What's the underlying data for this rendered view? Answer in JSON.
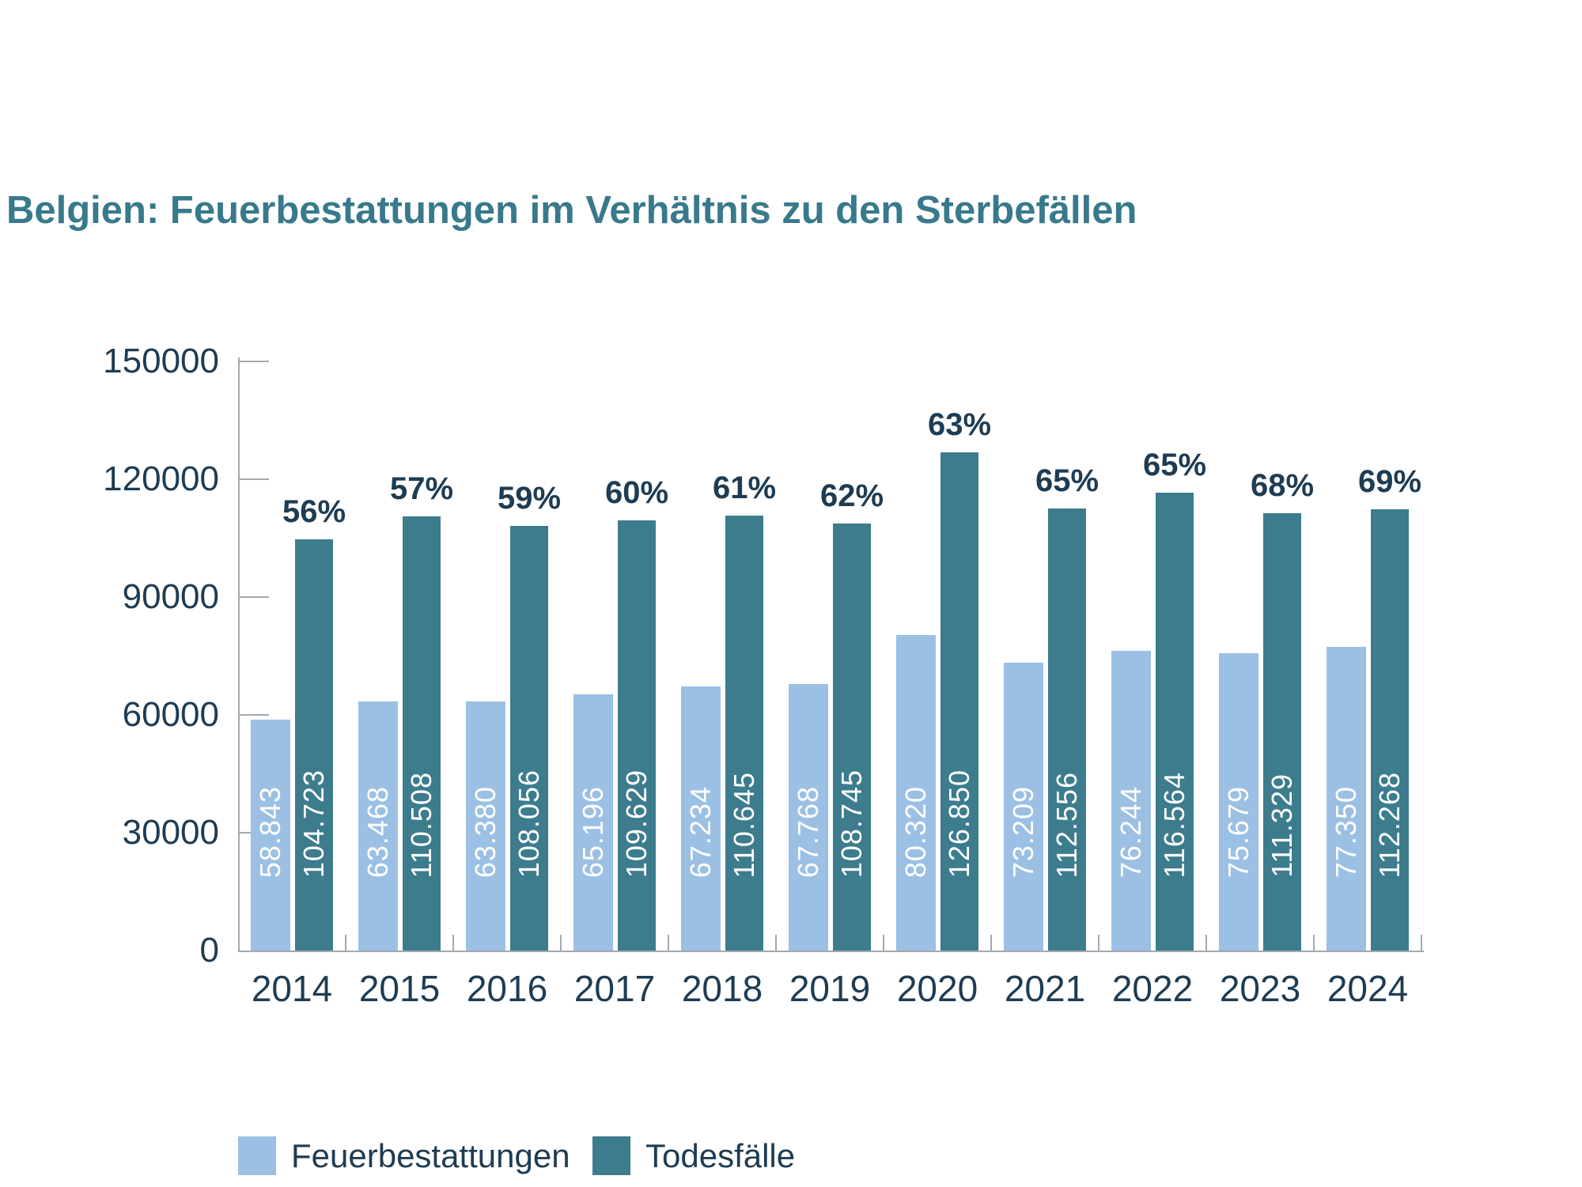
{
  "title": "Belgien: Feuerbestattungen im Verhältnis zu den Sterbefällen",
  "chart_data": {
    "type": "bar",
    "title": "Belgien: Feuerbestattungen im Verhältnis zu den Sterbefällen",
    "categories": [
      "2014",
      "2015",
      "2016",
      "2017",
      "2018",
      "2019",
      "2020",
      "2021",
      "2022",
      "2023",
      "2024"
    ],
    "series": [
      {
        "name": "Feuerbestattungen",
        "color": "#9bc0e4",
        "values": [
          58843,
          63468,
          63380,
          65196,
          67234,
          67768,
          80320,
          73209,
          76244,
          75679,
          77350
        ],
        "labels": [
          "58.843",
          "63.468",
          "63.380",
          "65.196",
          "67.234",
          "67.768",
          "80.320",
          "73.209",
          "76.244",
          "75.679",
          "77.350"
        ]
      },
      {
        "name": "Todesfälle",
        "color": "#3c7c8d",
        "values": [
          104723,
          110508,
          108056,
          109629,
          110645,
          108745,
          126850,
          112556,
          116564,
          111329,
          112268
        ],
        "labels": [
          "104.723",
          "110.508",
          "108.056",
          "109.629",
          "110.645",
          "108.745",
          "126.850",
          "112.556",
          "116.564",
          "111.329",
          "112.268"
        ]
      }
    ],
    "percent_labels": [
      "56%",
      "57%",
      "59%",
      "60%",
      "61%",
      "62%",
      "63%",
      "65%",
      "65%",
      "68%",
      "69%"
    ],
    "xlabel": "",
    "ylabel": "",
    "ylim": [
      0,
      150000
    ],
    "yticks": [
      0,
      30000,
      60000,
      90000,
      120000,
      150000
    ],
    "ytick_labels": [
      "0",
      "30000",
      "60000",
      "90000",
      "120000",
      "150000"
    ],
    "grid": false,
    "legend_position": "bottom",
    "bar_value_label_color": "#ffffff",
    "axis_color": "#a3a9af",
    "text_color": "#1e3c53"
  }
}
